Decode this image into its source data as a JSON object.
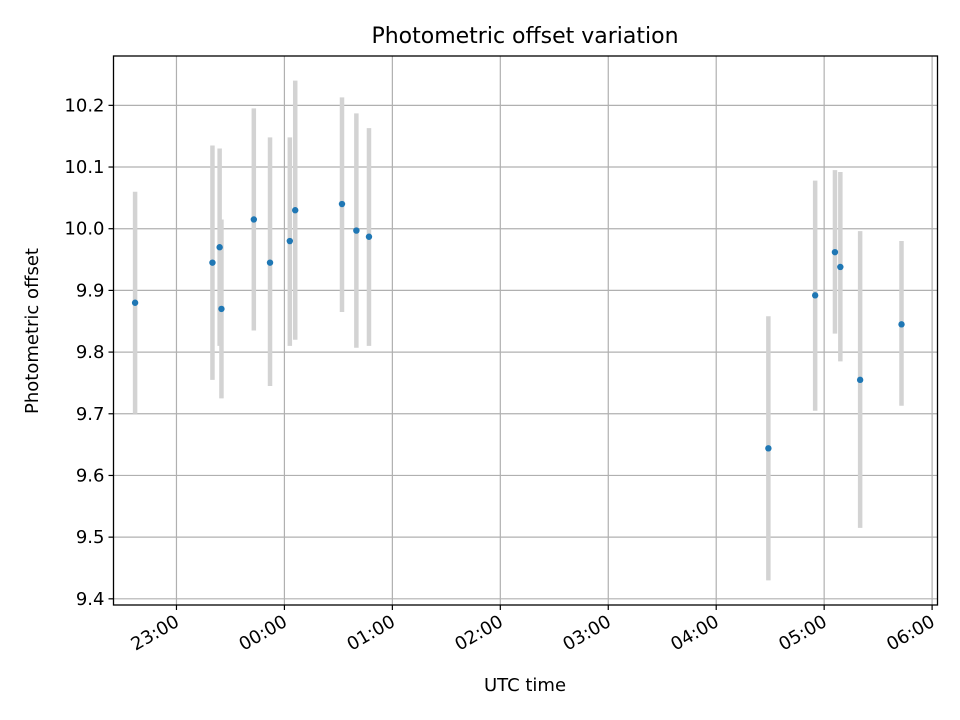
{
  "chart_data": {
    "type": "scatter",
    "title": "Photometric offset variation",
    "xlabel": "UTC time",
    "ylabel": "Photometric offset",
    "x_unit": "UTC time (HH:MM)",
    "x_domain": [
      "22:25",
      "06:03"
    ],
    "xlim": [
      "22:25",
      "06:03"
    ],
    "ylim": [
      9.39,
      10.28
    ],
    "x_ticks": [
      "23:00",
      "00:00",
      "01:00",
      "02:00",
      "03:00",
      "04:00",
      "05:00",
      "06:00"
    ],
    "y_ticks": [
      9.4,
      9.5,
      9.6,
      9.7,
      9.8,
      9.9,
      10.0,
      10.1,
      10.2
    ],
    "grid": true,
    "point_color": "#1f77b4",
    "errorbar_color": "#d3d3d3",
    "points": [
      {
        "x": "22:37",
        "y": 9.88,
        "ylow": 9.7,
        "yhigh": 10.06
      },
      {
        "x": "23:20",
        "y": 9.945,
        "ylow": 9.755,
        "yhigh": 10.135
      },
      {
        "x": "23:24",
        "y": 9.97,
        "ylow": 9.81,
        "yhigh": 10.13
      },
      {
        "x": "23:25",
        "y": 9.87,
        "ylow": 9.725,
        "yhigh": 10.015
      },
      {
        "x": "23:43",
        "y": 10.015,
        "ylow": 9.835,
        "yhigh": 10.195
      },
      {
        "x": "23:52",
        "y": 9.945,
        "ylow": 9.745,
        "yhigh": 10.148
      },
      {
        "x": "00:03",
        "y": 9.98,
        "ylow": 9.81,
        "yhigh": 10.148
      },
      {
        "x": "00:06",
        "y": 10.03,
        "ylow": 9.82,
        "yhigh": 10.24
      },
      {
        "x": "00:32",
        "y": 10.04,
        "ylow": 9.865,
        "yhigh": 10.213
      },
      {
        "x": "00:40",
        "y": 9.997,
        "ylow": 9.807,
        "yhigh": 10.187
      },
      {
        "x": "00:47",
        "y": 9.987,
        "ylow": 9.81,
        "yhigh": 10.163
      },
      {
        "x": "04:29",
        "y": 9.644,
        "ylow": 9.43,
        "yhigh": 9.858
      },
      {
        "x": "04:55",
        "y": 9.892,
        "ylow": 9.705,
        "yhigh": 10.078
      },
      {
        "x": "05:06",
        "y": 9.962,
        "ylow": 9.83,
        "yhigh": 10.095
      },
      {
        "x": "05:09",
        "y": 9.938,
        "ylow": 9.785,
        "yhigh": 10.092
      },
      {
        "x": "05:20",
        "y": 9.755,
        "ylow": 9.515,
        "yhigh": 9.996
      },
      {
        "x": "05:43",
        "y": 9.845,
        "ylow": 9.713,
        "yhigh": 9.98
      }
    ]
  }
}
